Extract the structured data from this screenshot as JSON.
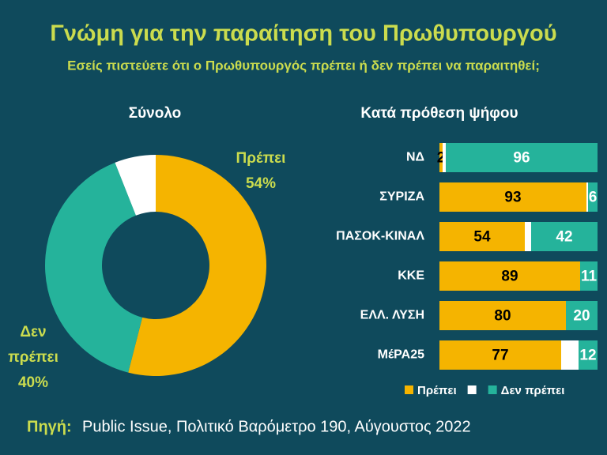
{
  "header": {
    "title": "Γνώμη για την παραίτηση του Πρωθυπουργού",
    "subtitle": "Εσείς πιστεύετε  ότι ο Πρωθυπουργός πρέπει ή δεν πρέπει να παραιτηθεί;"
  },
  "chart_data": [
    {
      "type": "pie",
      "hole": true,
      "title": "Σύνολο",
      "categories": [
        "Πρέπει",
        "Δεν πρέπει",
        null
      ],
      "values": [
        54,
        40,
        6
      ],
      "value_labels": [
        "54%",
        "40%",
        null
      ],
      "colors": [
        "#f5b400",
        "#25b39b",
        "#ffffff"
      ]
    },
    {
      "type": "bar",
      "orientation": "horizontal",
      "stacked": true,
      "title": "Κατά πρόθεση ψήφου",
      "categories": [
        "ΝΔ",
        "ΣΥΡΙΖΑ",
        "ΠΑΣΟΚ-ΚΙΝΑΛ",
        "ΚΚΕ",
        "ΕΛΛ. ΛΥΣΗ",
        "ΜέΡΑ25"
      ],
      "xlim": [
        0,
        100
      ],
      "legend": "bottom",
      "series": [
        {
          "name": "Πρέπει",
          "color": "#f5b400",
          "values": [
            2,
            93,
            54,
            89,
            80,
            77
          ]
        },
        {
          "name": null,
          "color": "#ffffff",
          "values": [
            2,
            1,
            4,
            0,
            0,
            11
          ]
        },
        {
          "name": "Δεν πρέπει",
          "color": "#25b39b",
          "values": [
            96,
            6,
            42,
            11,
            20,
            12
          ]
        }
      ]
    }
  ],
  "footer": {
    "source_label": "Πηγή:",
    "source": "Public Issue, Πολιτικό Βαρόμετρο 190, Αύγουστος 2022"
  }
}
